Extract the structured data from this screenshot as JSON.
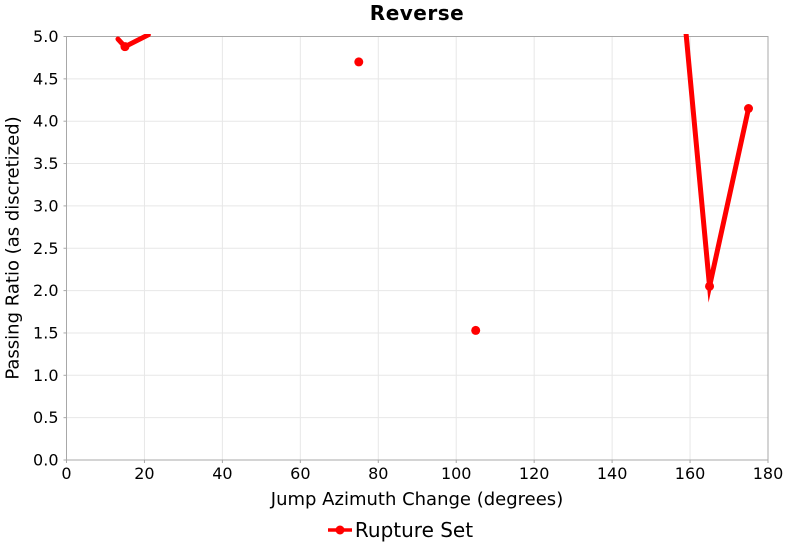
{
  "title": "Reverse",
  "legend": {
    "label": "Rupture Set"
  },
  "colors": {
    "series": "#ff0000",
    "grid": "#e7e7e7",
    "border": "#a8a8a8",
    "text": "#000000",
    "background": "#ffffff"
  },
  "chart_data": {
    "type": "line",
    "title": "Reverse",
    "xlabel": "Jump Azimuth Change (degrees)",
    "ylabel": "Passing Ratio (as discretized)",
    "xlim": [
      0,
      180
    ],
    "ylim": [
      0.0,
      5.0
    ],
    "grid": true,
    "legend_position": "bottom",
    "x_ticks": [
      {
        "v": 0,
        "label": "0"
      },
      {
        "v": 20,
        "label": "20"
      },
      {
        "v": 40,
        "label": "40"
      },
      {
        "v": 60,
        "label": "60"
      },
      {
        "v": 80,
        "label": "80"
      },
      {
        "v": 100,
        "label": "100"
      },
      {
        "v": 120,
        "label": "120"
      },
      {
        "v": 140,
        "label": "140"
      },
      {
        "v": 160,
        "label": "160"
      },
      {
        "v": 180,
        "label": "180"
      }
    ],
    "y_ticks": [
      {
        "v": 0.0,
        "label": "0.0"
      },
      {
        "v": 0.5,
        "label": "0.5"
      },
      {
        "v": 1.0,
        "label": "1.0"
      },
      {
        "v": 1.5,
        "label": "1.5"
      },
      {
        "v": 2.0,
        "label": "2.0"
      },
      {
        "v": 2.5,
        "label": "2.5"
      },
      {
        "v": 3.0,
        "label": "3.0"
      },
      {
        "v": 3.5,
        "label": "3.5"
      },
      {
        "v": 4.0,
        "label": "4.0"
      },
      {
        "v": 4.5,
        "label": "4.5"
      },
      {
        "v": 5.0,
        "label": "5.0"
      }
    ],
    "series": [
      {
        "name": "Rupture Set",
        "color": "#ff0000",
        "line_width": 5,
        "marker": "circle",
        "marker_radius": 4.5,
        "marker_points": [
          [
            15,
            4.88
          ],
          [
            75,
            4.7
          ],
          [
            105,
            1.53
          ],
          [
            165,
            2.05
          ],
          [
            175,
            4.15
          ]
        ],
        "line_segments": [
          [
            [
              13.2,
              4.97
            ],
            [
              15,
              4.88
            ],
            [
              21,
              5.02
            ]
          ],
          [
            [
              155,
              7.0
            ],
            [
              165,
              2.05
            ],
            [
              175,
              4.15
            ]
          ]
        ]
      }
    ]
  }
}
